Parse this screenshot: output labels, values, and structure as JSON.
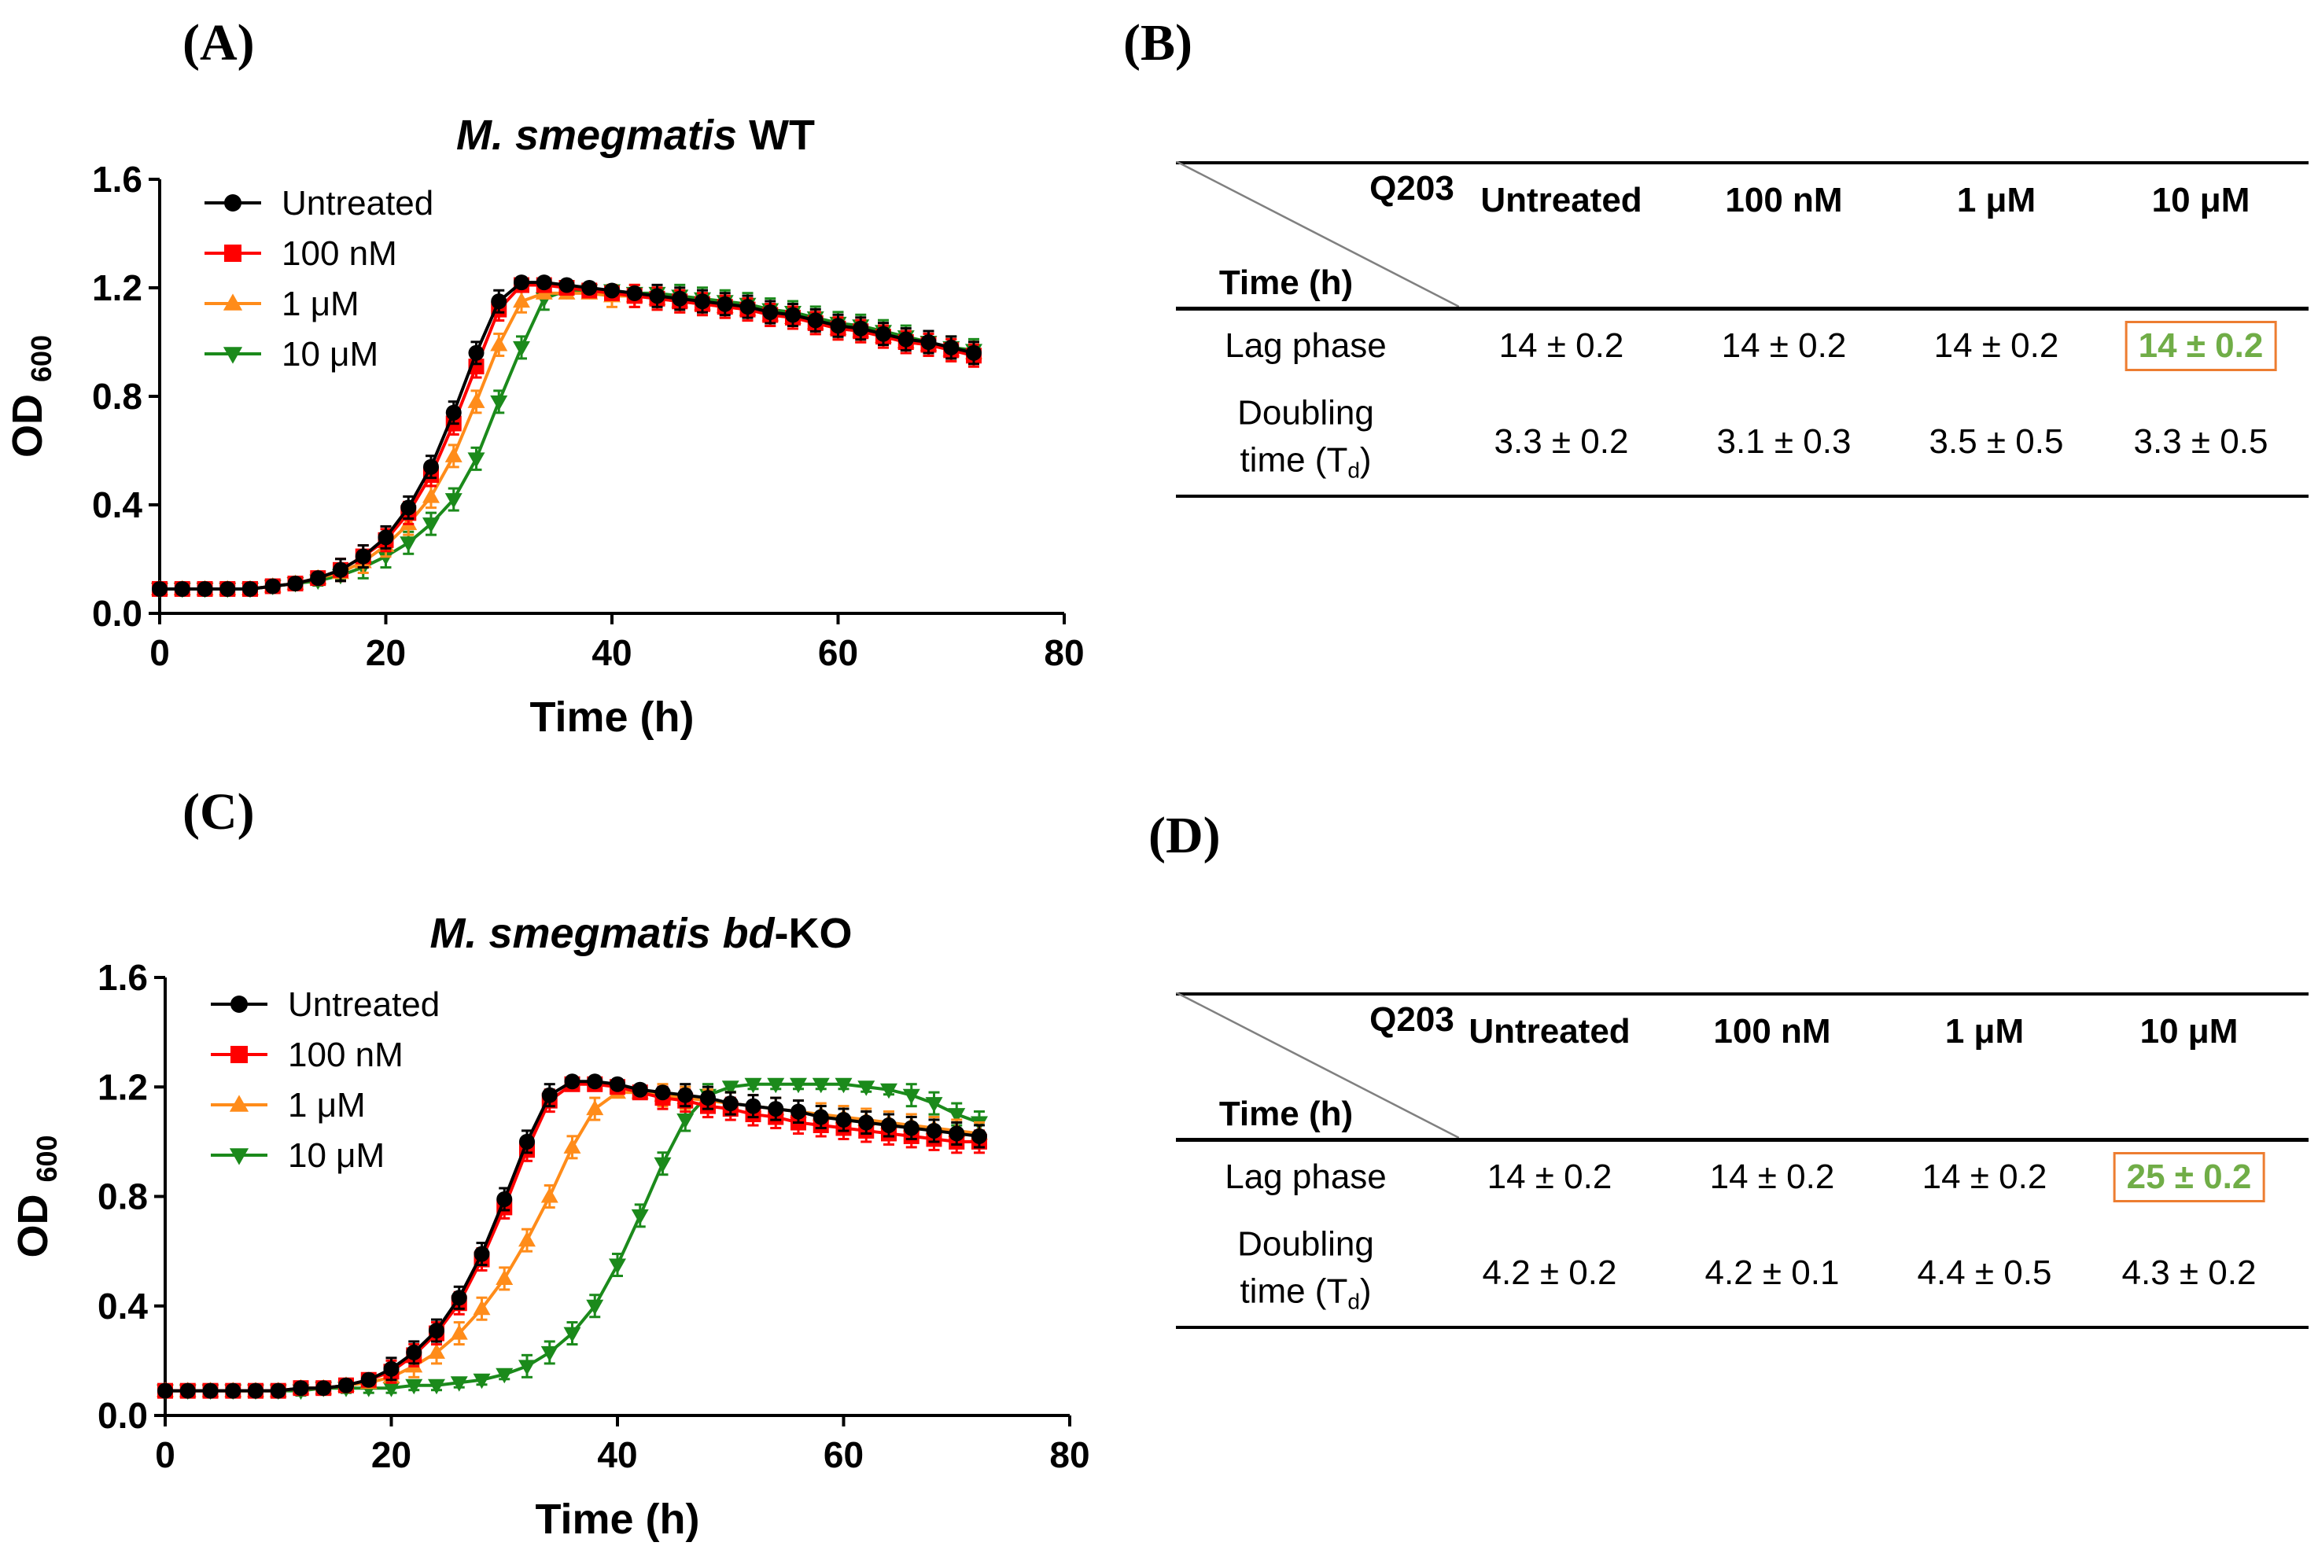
{
  "chart_data": [
    {
      "panel": "(A)",
      "type": "line",
      "title": "M. smegmatis WT",
      "title_italic": "M. smegmatis",
      "title_rest": " WT",
      "xlabel": "Time (h)",
      "ylabel_main": "OD",
      "ylabel_sub": "600",
      "xlim": [
        0,
        80
      ],
      "ylim": [
        0.0,
        1.6
      ],
      "xticks": [
        "0",
        "20",
        "40",
        "60",
        "80"
      ],
      "yticks": [
        "0.0",
        "0.4",
        "0.8",
        "1.2",
        "1.6"
      ],
      "legend_position": "top-left",
      "grid": false,
      "x": [
        0,
        2,
        4,
        6,
        8,
        10,
        12,
        14,
        16,
        18,
        20,
        22,
        24,
        26,
        28,
        30,
        32,
        34,
        36,
        38,
        40,
        42,
        44,
        46,
        48,
        50,
        52,
        54,
        56,
        58,
        60,
        62,
        64,
        66,
        68,
        70,
        72
      ],
      "series": [
        {
          "name": "Untreated",
          "color": "#000000",
          "marker": "circle",
          "values": [
            0.09,
            0.09,
            0.09,
            0.09,
            0.09,
            0.1,
            0.11,
            0.13,
            0.16,
            0.21,
            0.28,
            0.39,
            0.54,
            0.74,
            0.96,
            1.15,
            1.22,
            1.22,
            1.21,
            1.2,
            1.19,
            1.18,
            1.17,
            1.16,
            1.15,
            1.14,
            1.13,
            1.11,
            1.1,
            1.08,
            1.06,
            1.05,
            1.03,
            1.01,
            1.0,
            0.98,
            0.96
          ]
        },
        {
          "name": "100 nM",
          "color": "#FF0000",
          "marker": "square",
          "values": [
            0.09,
            0.09,
            0.09,
            0.09,
            0.09,
            0.1,
            0.11,
            0.13,
            0.16,
            0.21,
            0.27,
            0.37,
            0.51,
            0.7,
            0.91,
            1.12,
            1.21,
            1.21,
            1.2,
            1.19,
            1.18,
            1.17,
            1.16,
            1.15,
            1.14,
            1.13,
            1.12,
            1.1,
            1.09,
            1.07,
            1.05,
            1.04,
            1.02,
            1.0,
            0.99,
            0.97,
            0.95
          ]
        },
        {
          "name": "1 μM",
          "color": "#FF8C1A",
          "marker": "triangle-up",
          "values": [
            0.09,
            0.09,
            0.09,
            0.09,
            0.09,
            0.1,
            0.11,
            0.13,
            0.15,
            0.19,
            0.25,
            0.33,
            0.43,
            0.58,
            0.78,
            0.99,
            1.15,
            1.18,
            1.18,
            1.18,
            1.17,
            1.17,
            1.16,
            1.15,
            1.14,
            1.13,
            1.12,
            1.1,
            1.09,
            1.07,
            1.05,
            1.04,
            1.02,
            1.0,
            0.99,
            0.97,
            0.96
          ]
        },
        {
          "name": "10 μM",
          "color": "#1B8A1B",
          "marker": "triangle-down",
          "values": [
            0.09,
            0.09,
            0.09,
            0.09,
            0.09,
            0.1,
            0.11,
            0.12,
            0.14,
            0.17,
            0.21,
            0.26,
            0.33,
            0.42,
            0.57,
            0.78,
            0.98,
            1.16,
            1.19,
            1.19,
            1.19,
            1.18,
            1.18,
            1.17,
            1.16,
            1.15,
            1.14,
            1.12,
            1.11,
            1.09,
            1.07,
            1.06,
            1.04,
            1.02,
            1.0,
            0.98,
            0.97
          ]
        }
      ]
    },
    {
      "panel": "(C)",
      "type": "line",
      "title": "M. smegmatis bd-KO",
      "title_italic": "M. smegmatis bd",
      "title_rest": "-KO",
      "xlabel": "Time (h)",
      "ylabel_main": "OD",
      "ylabel_sub": "600",
      "xlim": [
        0,
        80
      ],
      "ylim": [
        0.0,
        1.6
      ],
      "xticks": [
        "0",
        "20",
        "40",
        "60",
        "80"
      ],
      "yticks": [
        "0.0",
        "0.4",
        "0.8",
        "1.2",
        "1.6"
      ],
      "legend_position": "top-left",
      "grid": false,
      "x": [
        0,
        2,
        4,
        6,
        8,
        10,
        12,
        14,
        16,
        18,
        20,
        22,
        24,
        26,
        28,
        30,
        32,
        34,
        36,
        38,
        40,
        42,
        44,
        46,
        48,
        50,
        52,
        54,
        56,
        58,
        60,
        62,
        64,
        66,
        68,
        70,
        72
      ],
      "series": [
        {
          "name": "Untreated",
          "color": "#000000",
          "marker": "circle",
          "values": [
            0.09,
            0.09,
            0.09,
            0.09,
            0.09,
            0.09,
            0.1,
            0.1,
            0.11,
            0.13,
            0.17,
            0.23,
            0.31,
            0.43,
            0.59,
            0.79,
            1.0,
            1.17,
            1.22,
            1.22,
            1.21,
            1.19,
            1.18,
            1.17,
            1.16,
            1.14,
            1.13,
            1.12,
            1.11,
            1.09,
            1.08,
            1.07,
            1.06,
            1.05,
            1.04,
            1.03,
            1.02
          ]
        },
        {
          "name": "100 nM",
          "color": "#FF0000",
          "marker": "square",
          "values": [
            0.09,
            0.09,
            0.09,
            0.09,
            0.09,
            0.09,
            0.1,
            0.1,
            0.11,
            0.13,
            0.16,
            0.22,
            0.3,
            0.41,
            0.57,
            0.76,
            0.97,
            1.15,
            1.21,
            1.21,
            1.2,
            1.18,
            1.16,
            1.15,
            1.13,
            1.12,
            1.1,
            1.09,
            1.07,
            1.06,
            1.05,
            1.04,
            1.03,
            1.02,
            1.01,
            1.0,
            1.0
          ]
        },
        {
          "name": "1 μM",
          "color": "#FF8C1A",
          "marker": "triangle-up",
          "values": [
            0.09,
            0.09,
            0.09,
            0.09,
            0.09,
            0.09,
            0.1,
            0.1,
            0.11,
            0.12,
            0.14,
            0.18,
            0.23,
            0.3,
            0.39,
            0.5,
            0.64,
            0.8,
            0.98,
            1.12,
            1.18,
            1.18,
            1.17,
            1.16,
            1.15,
            1.14,
            1.13,
            1.12,
            1.11,
            1.1,
            1.09,
            1.08,
            1.07,
            1.06,
            1.05,
            1.04,
            1.03
          ]
        },
        {
          "name": "10 μM",
          "color": "#1B8A1B",
          "marker": "triangle-down",
          "values": [
            0.09,
            0.09,
            0.09,
            0.09,
            0.09,
            0.09,
            0.09,
            0.1,
            0.1,
            0.1,
            0.1,
            0.11,
            0.11,
            0.12,
            0.13,
            0.15,
            0.18,
            0.23,
            0.3,
            0.4,
            0.55,
            0.73,
            0.92,
            1.08,
            1.17,
            1.2,
            1.21,
            1.21,
            1.21,
            1.21,
            1.21,
            1.2,
            1.19,
            1.17,
            1.14,
            1.1,
            1.07
          ]
        }
      ]
    }
  ],
  "tables": [
    {
      "panel": "(B)",
      "corner_top": "Q203",
      "corner_bottom": "Time (h)",
      "columns": [
        "Untreated",
        "100 nM",
        "1 μM",
        "10 μM"
      ],
      "rows": [
        {
          "label": "Lag phase",
          "values": [
            "14 ± 0.2",
            "14 ± 0.2",
            "14 ± 0.2",
            "14 ± 0.2"
          ]
        },
        {
          "label_line1": "Doubling",
          "label_line2": "time (T",
          "label_sub": "d",
          "label_end": ")",
          "values": [
            "3.3 ± 0.2",
            "3.1 ± 0.3",
            "3.5 ± 0.5",
            "3.3 ± 0.5"
          ]
        }
      ],
      "highlight_color": "#70AD47",
      "highlight_border": "#ED7D31"
    },
    {
      "panel": "(D)",
      "corner_top": "Q203",
      "corner_bottom": "Time (h)",
      "columns": [
        "Untreated",
        "100 nM",
        "1 μM",
        "10 μM"
      ],
      "rows": [
        {
          "label": "Lag phase",
          "values": [
            "14 ± 0.2",
            "14 ± 0.2",
            "14 ± 0.2",
            "25 ± 0.2"
          ]
        },
        {
          "label_line1": "Doubling",
          "label_line2": "time (T",
          "label_sub": "d",
          "label_end": ")",
          "values": [
            "4.2 ± 0.2",
            "4.2 ± 0.1",
            "4.4 ± 0.5",
            "4.3 ± 0.2"
          ]
        }
      ],
      "highlight_color": "#70AD47",
      "highlight_border": "#ED7D31"
    }
  ]
}
